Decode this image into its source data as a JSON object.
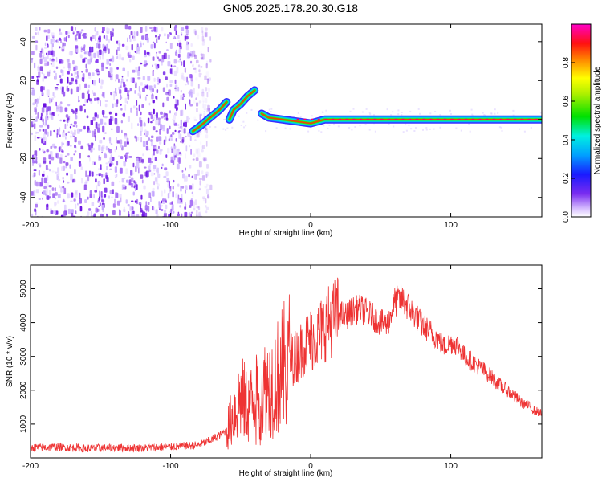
{
  "figure_title": "GN05.2025.178.20.30.G18",
  "chart_data": [
    {
      "type": "heatmap",
      "xlabel": "Height of straight line (km)",
      "ylabel": "Frequency (Hz)",
      "xlim": [
        -200,
        165
      ],
      "ylim": [
        -50,
        49
      ],
      "xticks": [
        -200,
        -100,
        0,
        100
      ],
      "yticks": [
        -40,
        -20,
        0,
        20,
        40
      ],
      "colorbar": {
        "label": "Normalized spectral amplitude",
        "range": [
          0,
          1
        ],
        "ticks": [
          "0.0",
          "0.2",
          "0.4",
          "0.6",
          "0.8"
        ],
        "colormap": "hsv-rainbow (violet low to magenta high)"
      },
      "noise_region": {
        "x_range": [
          -200,
          -80
        ],
        "frequency_range": [
          -50,
          49
        ],
        "amplitude": "low (0.0-0.2)"
      },
      "signal_track": {
        "x": [
          -84,
          -80,
          -75,
          -70,
          -65,
          -60,
          -58,
          -55,
          -50,
          -45,
          -40,
          -35,
          -30,
          -20,
          -10,
          0,
          10,
          20,
          50,
          100,
          150,
          165
        ],
        "frequency": [
          -6,
          -4,
          -1,
          2,
          5,
          9,
          0,
          5,
          8,
          12,
          15,
          3,
          1,
          0,
          -1,
          -2,
          0,
          0,
          0,
          0,
          0,
          0
        ]
      }
    },
    {
      "type": "line",
      "xlabel": "Height of straight line (km)",
      "ylabel": "SNR (10 * v/v)",
      "xlim": [
        -200,
        165
      ],
      "ylim": [
        0,
        5700
      ],
      "xticks": [
        -200,
        -100,
        0,
        100
      ],
      "yticks": [
        1000,
        2000,
        3000,
        4000,
        5000
      ],
      "color": "#ee3333",
      "series": [
        {
          "x": [
            -200,
            -180,
            -160,
            -140,
            -120,
            -100,
            -90,
            -80,
            -70,
            -60,
            -55,
            -50,
            -45,
            -40,
            -35,
            -30,
            -25,
            -20,
            -15,
            -10,
            -5,
            0,
            5,
            10,
            15,
            20,
            25,
            30,
            35,
            40,
            45,
            50,
            55,
            60,
            65,
            70,
            75,
            80,
            85,
            90,
            95,
            100,
            105,
            110,
            115,
            120,
            125,
            130,
            135,
            140,
            145,
            150,
            155,
            160,
            165
          ],
          "y": [
            300,
            320,
            280,
            300,
            290,
            330,
            350,
            380,
            550,
            800,
            1300,
            1800,
            1500,
            1700,
            2000,
            2100,
            2300,
            2600,
            2900,
            3000,
            3300,
            3500,
            3600,
            3900,
            4100,
            4250,
            4200,
            4350,
            4400,
            4300,
            4150,
            4000,
            3950,
            4600,
            4700,
            4450,
            4200,
            3900,
            3750,
            3550,
            3300,
            3400,
            3350,
            3000,
            2850,
            2700,
            2550,
            2350,
            2150,
            2000,
            1850,
            1650,
            1550,
            1400,
            1300
          ]
        }
      ]
    }
  ]
}
